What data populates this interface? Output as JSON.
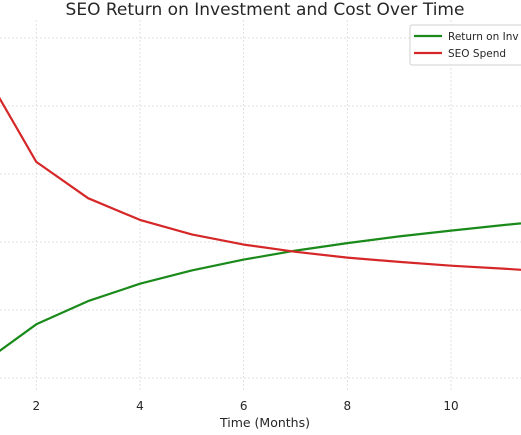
{
  "chart_data": {
    "type": "line",
    "title": "SEO Return on Investment and Cost Over Time",
    "xlabel": "Time (Months)",
    "ylabel": "",
    "x": [
      1,
      2,
      3,
      4,
      5,
      6,
      7,
      8,
      9,
      10,
      11,
      12
    ],
    "xticks": [
      2,
      4,
      6,
      8,
      10
    ],
    "xlim": [
      1.3,
      11.35
    ],
    "ylim": [
      0.0,
      1.0
    ],
    "grid": true,
    "legend_position": "top-right",
    "series": [
      {
        "name": "Return on Investment",
        "color": "#1a8a1a",
        "values": [
          0.0,
          0.13,
          0.21,
          0.27,
          0.316,
          0.353,
          0.384,
          0.41,
          0.433,
          0.453,
          0.472,
          0.489
        ]
      },
      {
        "name": "SEO Spend",
        "color": "#d62728",
        "values": [
          1.0,
          0.69,
          0.565,
          0.49,
          0.44,
          0.405,
          0.38,
          0.36,
          0.345,
          0.332,
          0.322,
          0.31
        ]
      }
    ]
  },
  "legend": {
    "items": [
      {
        "label": "Return on Inv",
        "color": "#1a8a1a"
      },
      {
        "label": "SEO Spend",
        "color": "#d62728"
      }
    ]
  }
}
